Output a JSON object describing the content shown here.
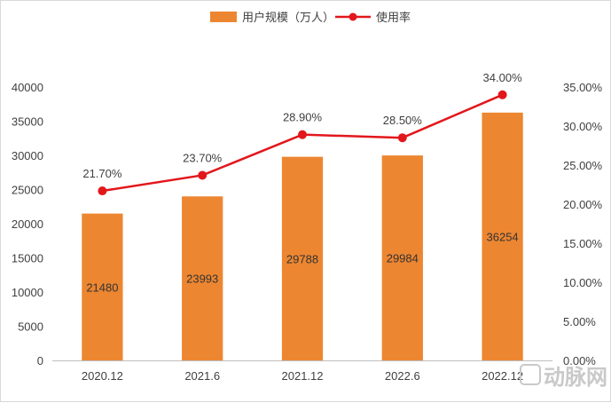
{
  "chart_data": {
    "type": "bar+line",
    "categories": [
      "2020.12",
      "2021.6",
      "2021.12",
      "2022.6",
      "2022.12"
    ],
    "series": [
      {
        "name": "用户规模（万人）",
        "type": "bar",
        "axis": "left",
        "color": "#ED8631",
        "values": [
          21480,
          23993,
          29788,
          29984,
          36254
        ],
        "labels": [
          "21480",
          "23993",
          "29788",
          "29984",
          "36254"
        ]
      },
      {
        "name": "使用率",
        "type": "line",
        "axis": "right",
        "color": "#E2171C",
        "values": [
          21.7,
          23.7,
          28.9,
          28.5,
          34.0
        ],
        "labels": [
          "21.70%",
          "23.70%",
          "28.90%",
          "28.50%",
          "34.00%"
        ]
      }
    ],
    "y_left": {
      "min": 0,
      "max": 40000,
      "ticks": [
        "0",
        "5000",
        "10000",
        "15000",
        "20000",
        "25000",
        "30000",
        "35000",
        "40000"
      ]
    },
    "y_right": {
      "min": 0,
      "max": 35,
      "ticks": [
        "0.00%",
        "5.00%",
        "10.00%",
        "15.00%",
        "20.00%",
        "25.00%",
        "30.00%",
        "35.00%"
      ]
    },
    "legend_position": "top-center",
    "grid": false
  },
  "watermark": {
    "text": "动脉网"
  }
}
